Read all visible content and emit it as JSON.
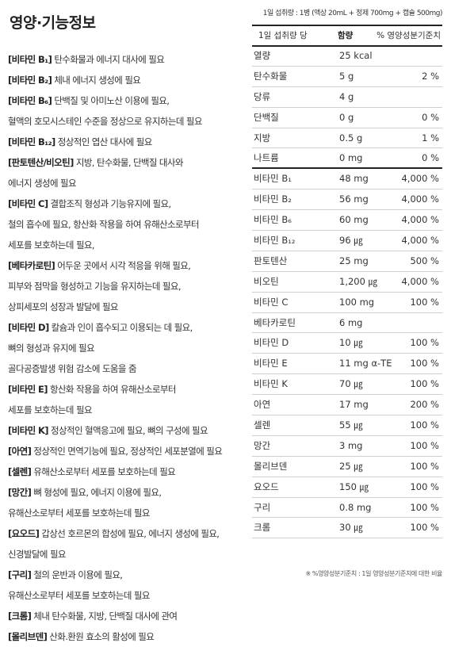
{
  "title": "영양·기능정보",
  "functions": [
    {
      "tag": "[비타민 B₁]",
      "text": " 탄수화물과 에너지 대사에 필요"
    },
    {
      "tag": "[비타민 B₂]",
      "text": " 체내 에너지 생성에 필요"
    },
    {
      "tag": "[비타민 B₆]",
      "text": " 단백질 및 아미노산 이용에 필요,"
    },
    {
      "tag": "",
      "text": "혈액의 호모시스테인 수준을 정상으로 유지하는데 필요"
    },
    {
      "tag": "[비타민 B₁₂]",
      "text": " 정상적인 엽산 대사에 필요"
    },
    {
      "tag": "[판토텐산/비오틴]",
      "text": " 지방, 탄수화물, 단백질 대사와"
    },
    {
      "tag": "",
      "text": "에너지 생성에 필요"
    },
    {
      "tag": "[비타민 C]",
      "text": " 결합조직 형성과 기능유지에 필요,"
    },
    {
      "tag": "",
      "text": "철의 흡수에 필요, 항산화 작용을 하여 유해산소로부터"
    },
    {
      "tag": "",
      "text": "세포를 보호하는데 필요,"
    },
    {
      "tag": "[베타카로틴]",
      "text": " 어두운 곳에서 시각 적응을 위해 필요,"
    },
    {
      "tag": "",
      "text": "피부와 점막을 형성하고 기능을 유지하는데 필요,"
    },
    {
      "tag": "",
      "text": "상피세포의 성장과 발달에 필요"
    },
    {
      "tag": "[비타민 D]",
      "text": " 칼슘과 인이 흡수되고 이용되는 데 필요,"
    },
    {
      "tag": "",
      "text": "뼈의 형성과 유지에 필요"
    },
    {
      "tag": "",
      "text": "골다공증발생 위험 감소에 도움을 줌"
    },
    {
      "tag": "[비타민 E]",
      "text": " 항산화 작용을 하여 유해산소로부터"
    },
    {
      "tag": "",
      "text": "세포를 보호하는데 필요"
    },
    {
      "tag": "[비타민 K]",
      "text": " 정상적인 혈액응고에 필요, 뼈의 구성에 필요"
    },
    {
      "tag": "[아연]",
      "text": " 정상적인 면역기능에 필요, 정상적인 세포분열에 필요"
    },
    {
      "tag": "[셀렌]",
      "text": " 유해산소로부터 세포를 보호하는데 필요"
    },
    {
      "tag": "[망간]",
      "text": " 뼈 형성에 필요, 에너지 이용에 필요,"
    },
    {
      "tag": "",
      "text": "유해산소로부터 세포를 보호하는데 필요"
    },
    {
      "tag": "[요오드]",
      "text": " 갑상선 호르몬의 합성에 필요, 에너지 생성에 필요,"
    },
    {
      "tag": "",
      "text": "신경발달에 필요"
    },
    {
      "tag": "[구리]",
      "text": " 철의 운반과 이용에 필요,"
    },
    {
      "tag": "",
      "text": "유해산소로부터 세포를 보호하는데 필요"
    },
    {
      "tag": "[크롬]",
      "text": " 체내 탄수화물, 지방, 단백질 대사에 관여"
    },
    {
      "tag": "[몰리브덴]",
      "text": " 산화.환원 효소의 활성에 필요"
    }
  ],
  "table": {
    "serving": "1일 섭취량 : 1병 (액상 20mL + 정제 700mg + 캡슐 500mg)",
    "headers": {
      "serving_size": "1일 섭취량 당",
      "amount": "함량",
      "dv": "% 영양성분기준치"
    },
    "rows": [
      {
        "name": "열량",
        "amount": "25 kcal",
        "dv": ""
      },
      {
        "name": "탄수화물",
        "amount": "5 g",
        "dv": "2 %"
      },
      {
        "name": "당류",
        "amount": "4 g",
        "dv": ""
      },
      {
        "name": "단백질",
        "amount": "0 g",
        "dv": "0 %"
      },
      {
        "name": "지방",
        "amount": "0.5 g",
        "dv": "1 %"
      },
      {
        "name": "나트륨",
        "amount": "0 mg",
        "dv": "0 %"
      },
      {
        "name": "비타민 B₁",
        "amount": "48 mg",
        "dv": "4,000 %"
      },
      {
        "name": "비타민 B₂",
        "amount": "56 mg",
        "dv": "4,000 %"
      },
      {
        "name": "비타민 B₆",
        "amount": "60 mg",
        "dv": "4,000 %"
      },
      {
        "name": "비타민 B₁₂",
        "amount": "96 ㎍",
        "dv": "4,000 %"
      },
      {
        "name": "판토텐산",
        "amount": "25 mg",
        "dv": "500 %"
      },
      {
        "name": "비오틴",
        "amount": "1,200 ㎍",
        "dv": "4,000 %"
      },
      {
        "name": "비타민 C",
        "amount": "100 mg",
        "dv": "100 %"
      },
      {
        "name": "베타카로틴",
        "amount": "6 mg",
        "dv": ""
      },
      {
        "name": "비타민 D",
        "amount": "10 ㎍",
        "dv": "100 %"
      },
      {
        "name": "비타민 E",
        "amount": "11 mg α-TE",
        "dv": "100 %"
      },
      {
        "name": "비타민 K",
        "amount": "70 ㎍",
        "dv": "100 %"
      },
      {
        "name": "아연",
        "amount": "17 mg",
        "dv": "200 %"
      },
      {
        "name": "셀렌",
        "amount": "55 ㎍",
        "dv": "100 %"
      },
      {
        "name": "망간",
        "amount": "3 mg",
        "dv": "100 %"
      },
      {
        "name": "몰리브덴",
        "amount": "25 ㎍",
        "dv": "100 %"
      },
      {
        "name": "요오드",
        "amount": "150 ㎍",
        "dv": "100 %"
      },
      {
        "name": "구리",
        "amount": "0.8 mg",
        "dv": "100 %"
      },
      {
        "name": "크롬",
        "amount": "30 ㎍",
        "dv": "100 %"
      }
    ],
    "footnote": "※ %영양성분기준치 : 1일 영양성분기준치에 대한 비율"
  }
}
